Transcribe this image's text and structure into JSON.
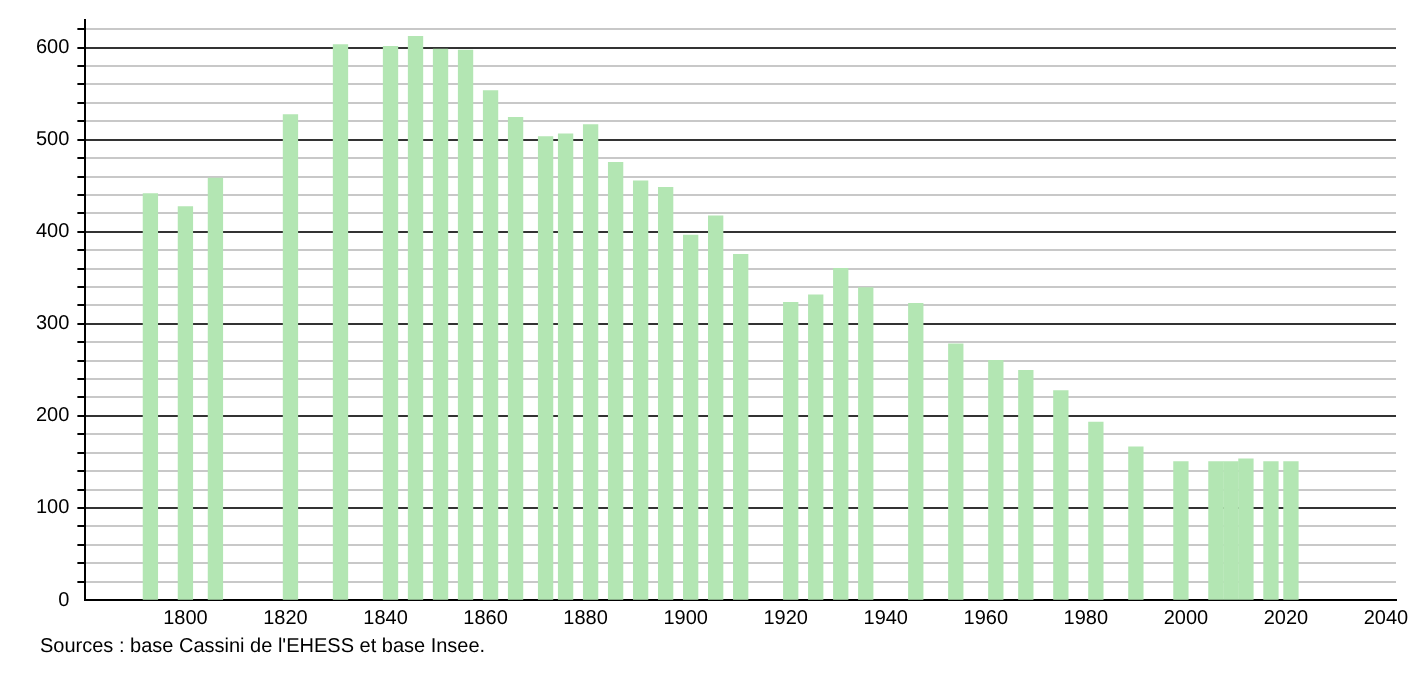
{
  "chart_data": {
    "type": "bar",
    "x": [
      1793,
      1800,
      1806,
      1821,
      1831,
      1841,
      1846,
      1851,
      1856,
      1861,
      1866,
      1872,
      1876,
      1881,
      1886,
      1891,
      1896,
      1901,
      1906,
      1911,
      1921,
      1926,
      1931,
      1936,
      1946,
      1954,
      1962,
      1968,
      1975,
      1982,
      1990,
      1999,
      2006,
      2009,
      2012,
      2017,
      2021
    ],
    "values": [
      441,
      427,
      458,
      527,
      603,
      601,
      612,
      598,
      597,
      553,
      524,
      503,
      506,
      516,
      475,
      455,
      448,
      396,
      417,
      375,
      323,
      331,
      360,
      339,
      322,
      278,
      260,
      249,
      227,
      193,
      166,
      150,
      150,
      150,
      153,
      150,
      150
    ],
    "color": "#b3e6b3",
    "xlim": [
      1780,
      2042
    ],
    "xticks": [
      1800,
      1820,
      1840,
      1860,
      1880,
      1900,
      1920,
      1940,
      1960,
      1980,
      2000,
      2020,
      2040
    ],
    "ylim": [
      0,
      630
    ],
    "yticks": [
      0,
      {
        "value": 20,
        "label": null
      },
      {
        "value": 40,
        "label": null
      },
      {
        "value": 60,
        "label": null
      },
      {
        "value": 80,
        "label": null
      },
      100,
      {
        "value": 120,
        "label": null
      },
      {
        "value": 140,
        "label": null
      },
      {
        "value": 160,
        "label": null
      },
      {
        "value": 180,
        "label": null
      },
      200,
      {
        "value": 220,
        "label": null
      },
      {
        "value": 240,
        "label": null
      },
      {
        "value": 260,
        "label": null
      },
      {
        "value": 280,
        "label": null
      },
      300,
      {
        "value": 320,
        "label": null
      },
      {
        "value": 340,
        "label": null
      },
      {
        "value": 360,
        "label": null
      },
      {
        "value": 380,
        "label": null
      },
      400,
      {
        "value": 420,
        "label": null
      },
      {
        "value": 440,
        "label": null
      },
      {
        "value": 460,
        "label": null
      },
      {
        "value": 480,
        "label": null
      },
      500,
      {
        "value": 520,
        "label": null
      },
      {
        "value": 540,
        "label": null
      },
      {
        "value": 560,
        "label": null
      },
      {
        "value": 580,
        "label": null
      },
      600,
      {
        "value": 620,
        "label": null
      }
    ],
    "grid": "y",
    "annotations": [
      "Sources : base Cassini de l'EHESS et base Insee."
    ]
  }
}
